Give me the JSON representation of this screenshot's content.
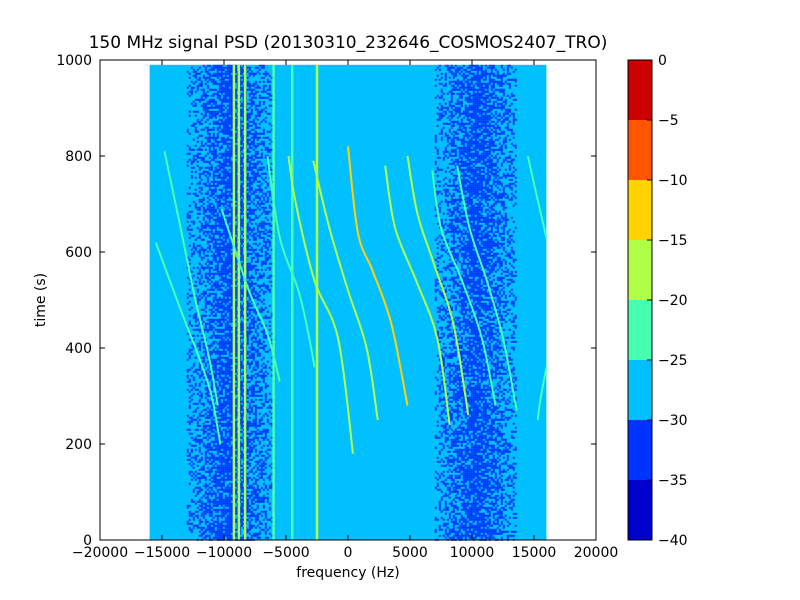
{
  "chart_data": {
    "type": "heatmap",
    "title": "150 MHz signal PSD (20130310_232646_COSMOS2407_TRO)",
    "xlabel": "frequency (Hz)",
    "ylabel": "time (s)",
    "xlim": [
      -20000,
      20000
    ],
    "ylim": [
      0,
      1000
    ],
    "xticks": [
      -20000,
      -15000,
      -10000,
      -5000,
      0,
      5000,
      10000,
      15000,
      20000
    ],
    "xtick_labels": [
      "−20000",
      "−15000",
      "−10000",
      "−5000",
      "0",
      "5000",
      "10000",
      "15000",
      "20000"
    ],
    "yticks": [
      0,
      200,
      400,
      600,
      800,
      1000
    ],
    "ytick_labels": [
      "0",
      "200",
      "400",
      "600",
      "800",
      "1000"
    ],
    "data_extent": {
      "freq": [
        -16000,
        16000
      ],
      "time": [
        0,
        990
      ]
    },
    "colorbar": {
      "levels": [
        -40,
        -35,
        -30,
        -25,
        -20,
        -15,
        -10,
        -5,
        0
      ],
      "tick_labels": [
        "−40",
        "−35",
        "−30",
        "−25",
        "−20",
        "−15",
        "−10",
        "−5",
        "0"
      ],
      "colors": [
        "#0000cd",
        "#0033ff",
        "#00c0ff",
        "#47ffb0",
        "#b0ff47",
        "#ffd200",
        "#ff5500",
        "#cd0000"
      ]
    },
    "background_level_color": "#00c0ff",
    "noise_bands": [
      {
        "freq": [
          -13000,
          -6000
        ],
        "level": [
          -35,
          -30
        ]
      },
      {
        "freq": [
          7000,
          13500
        ],
        "level": [
          -35,
          -30
        ]
      }
    ],
    "constant_lines": [
      {
        "freq": -9200,
        "level": [
          -20,
          -15
        ]
      },
      {
        "freq": -8800,
        "level": [
          -20,
          -15
        ]
      },
      {
        "freq": -8300,
        "level": [
          -20,
          -15
        ]
      },
      {
        "freq": -6000,
        "level": [
          -25,
          -20
        ]
      },
      {
        "freq": -4500,
        "level": [
          -25,
          -20
        ]
      },
      {
        "freq": -2500,
        "level": [
          -20,
          -15
        ]
      }
    ],
    "doppler_tracks": [
      {
        "points": [
          [
            -15500,
            620
          ],
          [
            -13500,
            480
          ],
          [
            -12000,
            380
          ],
          [
            -11000,
            300
          ],
          [
            -10300,
            200
          ]
        ],
        "level": [
          -25,
          -20
        ]
      },
      {
        "points": [
          [
            -14800,
            810
          ],
          [
            -13500,
            650
          ],
          [
            -12300,
            500
          ],
          [
            -11200,
            380
          ],
          [
            -10500,
            280
          ]
        ],
        "level": [
          -25,
          -20
        ]
      },
      {
        "points": [
          [
            -10200,
            690
          ],
          [
            -8000,
            520
          ],
          [
            -6500,
            430
          ],
          [
            -5500,
            330
          ]
        ],
        "level": [
          -25,
          -20
        ]
      },
      {
        "points": [
          [
            -6500,
            800
          ],
          [
            -5500,
            630
          ],
          [
            -4000,
            520
          ],
          [
            -3200,
            430
          ],
          [
            -2700,
            360
          ]
        ],
        "level": [
          -25,
          -20
        ]
      },
      {
        "points": [
          [
            -4800,
            800
          ],
          [
            -4200,
            700
          ],
          [
            -2700,
            540
          ],
          [
            -800,
            420
          ],
          [
            400,
            180
          ]
        ],
        "level": [
          -20,
          -15
        ]
      },
      {
        "points": [
          [
            -2800,
            790
          ],
          [
            -1500,
            650
          ],
          [
            0,
            520
          ],
          [
            1500,
            400
          ],
          [
            2400,
            250
          ]
        ],
        "level": [
          -20,
          -15
        ]
      },
      {
        "points": [
          [
            0,
            820
          ],
          [
            800,
            640
          ],
          [
            2000,
            560
          ],
          [
            3500,
            450
          ],
          [
            4800,
            280
          ]
        ],
        "level": [
          -15,
          -10
        ]
      },
      {
        "points": [
          [
            3000,
            780
          ],
          [
            3800,
            650
          ],
          [
            5500,
            540
          ],
          [
            7200,
            420
          ],
          [
            8200,
            240
          ]
        ],
        "level": [
          -20,
          -15
        ]
      },
      {
        "points": [
          [
            4800,
            800
          ],
          [
            5600,
            680
          ],
          [
            7000,
            570
          ],
          [
            8500,
            450
          ],
          [
            9700,
            260
          ]
        ],
        "level": [
          -20,
          -15
        ]
      },
      {
        "points": [
          [
            6800,
            770
          ],
          [
            7500,
            650
          ],
          [
            9200,
            540
          ],
          [
            10800,
            420
          ],
          [
            11900,
            280
          ]
        ],
        "level": [
          -25,
          -20
        ]
      },
      {
        "points": [
          [
            8800,
            780
          ],
          [
            9800,
            650
          ],
          [
            11200,
            540
          ],
          [
            12500,
            420
          ],
          [
            13600,
            270
          ]
        ],
        "level": [
          -25,
          -20
        ]
      },
      {
        "points": [
          [
            14500,
            800
          ],
          [
            15200,
            720
          ],
          [
            16000,
            630
          ]
        ],
        "level": [
          -25,
          -20
        ]
      },
      {
        "points": [
          [
            16000,
            360
          ],
          [
            15500,
            290
          ],
          [
            15300,
            250
          ]
        ],
        "level": [
          -25,
          -20
        ]
      }
    ]
  }
}
